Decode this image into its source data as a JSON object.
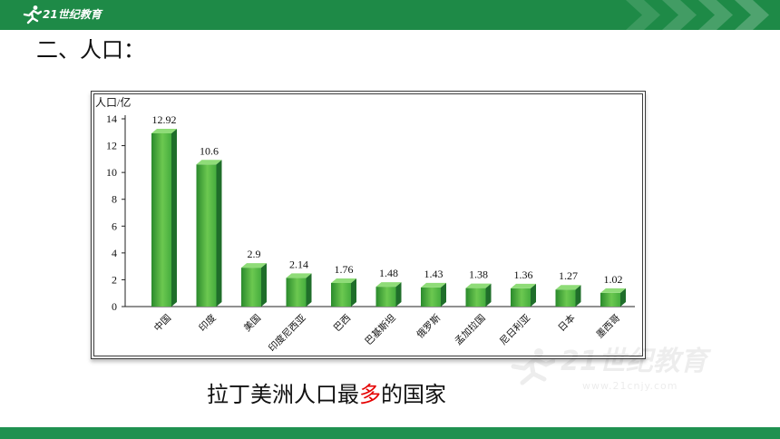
{
  "header": {
    "logo_text": "21世纪教育"
  },
  "heading": "二、人口：",
  "chart_data": {
    "type": "bar",
    "ylabel": "人口/亿",
    "xlabel": "",
    "categories": [
      "中国",
      "印度",
      "美国",
      "印度尼西亚",
      "巴西",
      "巴基斯坦",
      "俄罗斯",
      "孟加拉国",
      "尼日利亚",
      "日本",
      "墨西哥"
    ],
    "values": [
      12.92,
      10.6,
      2.9,
      2.14,
      1.76,
      1.48,
      1.43,
      1.38,
      1.36,
      1.27,
      1.02
    ],
    "ylim": [
      0,
      14
    ],
    "yticks": [
      0,
      2,
      4,
      6,
      8,
      10,
      12,
      14
    ],
    "grid": false,
    "data_labels": true,
    "bar_color": "#3ea83a"
  },
  "caption": {
    "before": "拉丁美洲人口最",
    "highlight": "多",
    "after": "的国家",
    "highlight_color": "#e50000"
  },
  "watermark": {
    "logo_text": "21世纪教育",
    "url": "www.21cnjy.com"
  },
  "colors": {
    "theme_green": "#1e8a47",
    "footer_green": "#1f9150"
  },
  "icons": {
    "logo": "runner-logo-icon",
    "header_decoration": "chevron-arrows-icon"
  }
}
